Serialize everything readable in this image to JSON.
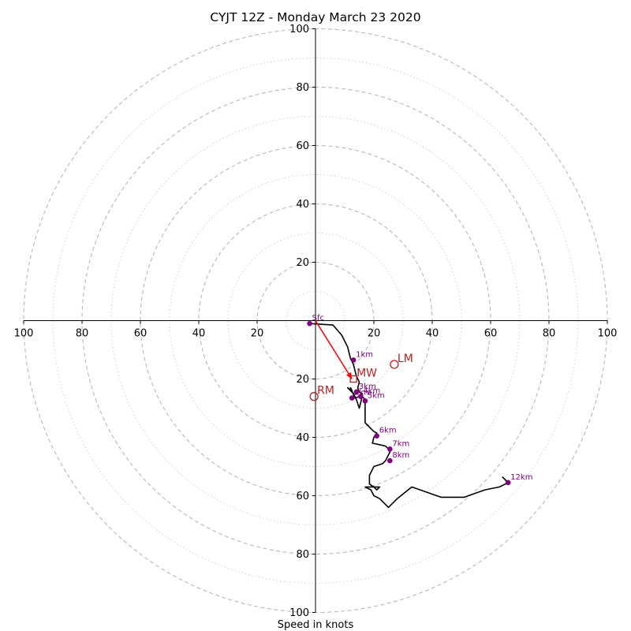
{
  "chart_data": {
    "type": "line",
    "title": "CYJT 12Z - Monday March 23 2020",
    "xlabel": "Speed in knots",
    "ylabel": "",
    "xlim": [
      -100,
      100
    ],
    "ylim": [
      -100,
      100
    ],
    "y_inverted": true,
    "rings": {
      "major": [
        20,
        40,
        60,
        80,
        100
      ],
      "minor": [
        10,
        30,
        50,
        70,
        90
      ],
      "major_style": "dashed",
      "minor_style": "dotted"
    },
    "x_ticks": [
      -100,
      -80,
      -60,
      -40,
      -20,
      0,
      20,
      40,
      60,
      80,
      100
    ],
    "x_tick_labels": [
      "100",
      "80",
      "60",
      "40",
      "20",
      "",
      "20",
      "40",
      "60",
      "80",
      "100"
    ],
    "y_ticks": [
      -100,
      -80,
      -60,
      -40,
      -20,
      20,
      40,
      60,
      80,
      100
    ],
    "y_tick_labels_upper": [
      "100",
      "80",
      "60",
      "40",
      "20"
    ],
    "y_tick_labels_lower": [
      "20",
      "40",
      "60",
      "80",
      "100"
    ],
    "hodograph": {
      "color": "#000000",
      "x": [
        -2,
        6,
        9,
        11,
        12,
        13,
        13.5,
        14,
        15,
        14.5,
        15,
        16,
        15,
        13.5,
        12,
        12.5,
        11,
        13,
        14,
        14.5,
        15,
        16,
        17,
        17,
        17,
        18,
        19,
        20,
        21,
        20,
        19.5,
        22,
        24,
        25,
        25.5,
        24.5,
        24,
        23,
        20,
        18.5,
        18.5,
        20,
        20.5,
        21,
        22,
        17,
        19,
        20,
        22,
        23,
        25,
        28,
        33,
        43,
        51,
        58,
        63,
        66,
        64
      ],
      "y": [
        -1,
        -1.5,
        -5,
        -9,
        -13,
        -15,
        -17,
        -19,
        -21,
        -23,
        -24.5,
        -25,
        -26,
        -26.5,
        -23,
        -24,
        -23,
        -25,
        -27,
        -28.5,
        -30,
        -26,
        -27,
        -30,
        -35,
        -36,
        -37,
        -38,
        -38.5,
        -40,
        -42,
        -42.5,
        -43,
        -44,
        -45,
        -47,
        -48,
        -49,
        -50,
        -53,
        -56,
        -57,
        -57.5,
        -58,
        -57,
        -57,
        -58,
        -60,
        -61,
        -62,
        -64,
        -61,
        -57,
        -60.5,
        -60.5,
        -58,
        -57,
        -55.5,
        -53.5
      ]
    },
    "height_markers": {
      "color": "#800080",
      "points": [
        {
          "label": "Sfc",
          "x": -2,
          "y": -1
        },
        {
          "label": "1km",
          "x": 13,
          "y": -13.5
        },
        {
          "label": "2km",
          "x": 12.5,
          "y": -26.5
        },
        {
          "label": "3km",
          "x": 14,
          "y": -24.5
        },
        {
          "label": "4km",
          "x": 15.5,
          "y": -26
        },
        {
          "label": "5km",
          "x": 17,
          "y": -27.5
        },
        {
          "label": "6km",
          "x": 21,
          "y": -39.5
        },
        {
          "label": "7km",
          "x": 25.5,
          "y": -44
        },
        {
          "label": "8km",
          "x": 25.5,
          "y": -48
        },
        {
          "label": "12km",
          "x": 66,
          "y": -55.5
        }
      ]
    },
    "mean_wind_arrow": {
      "color": "#ff0000",
      "from": {
        "x": 0,
        "y": 0
      },
      "to": {
        "x": 12.5,
        "y": -20
      }
    },
    "storm_motions": {
      "color": "#b22222",
      "points": [
        {
          "label": "LM",
          "marker": "circle",
          "x": 27,
          "y": -15
        },
        {
          "label": "MW",
          "marker": "square",
          "x": 13,
          "y": -20
        },
        {
          "label": "RM",
          "marker": "circle",
          "x": -0.5,
          "y": -26
        }
      ]
    },
    "grid": true,
    "legend": "none"
  }
}
